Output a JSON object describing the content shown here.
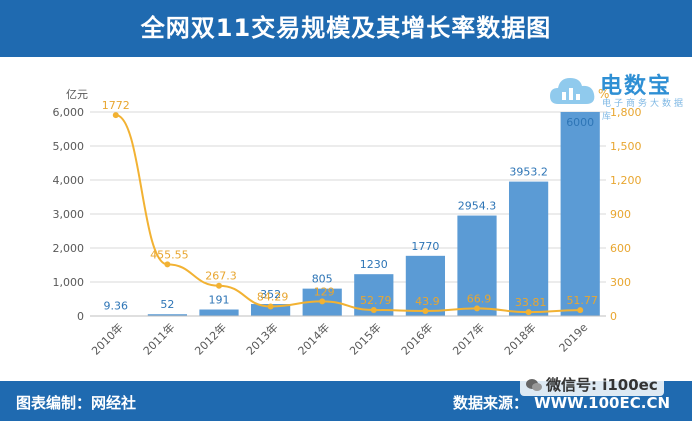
{
  "header": {
    "title": "全网双11交易规模及其增长率数据图"
  },
  "logo": {
    "name": "电数宝",
    "subtitle": "电子商务大数据库",
    "icon": "cloud-icon"
  },
  "footer": {
    "left": "图表编制：网经社",
    "right_label": "数据来源：",
    "right_url": "WWW.100EC.CN"
  },
  "watermark": {
    "text": "微信号: i100ec",
    "icon": "wechat-icon"
  },
  "colors": {
    "bar": "#5b9bd5",
    "line": "#f2b233",
    "header_bg": "#1f6ab0",
    "bar_label": "#2e75b6",
    "line_label": "#e8a630"
  },
  "chart_data": {
    "type": "bar",
    "categories": [
      "2010年",
      "2011年",
      "2012年",
      "2013年",
      "2014年",
      "2015年",
      "2016年",
      "2017年",
      "2018年",
      "2019e"
    ],
    "series": [
      {
        "values": [
          9.36,
          52,
          191,
          352,
          805,
          1230,
          1770,
          2954.3,
          3953.2,
          6000
        ],
        "axis": "left",
        "kind": "bar"
      },
      {
        "values": [
          1772,
          455.55,
          267.3,
          84.29,
          129,
          52.79,
          43.9,
          66.9,
          33.81,
          51.77
        ],
        "axis": "right",
        "kind": "line"
      }
    ],
    "bar_labels": [
      "9.36",
      "52",
      "191",
      "352",
      "805",
      "1230",
      "1770",
      "2954.3",
      "3953.2",
      "6000"
    ],
    "line_labels": [
      "1772",
      "455.55",
      "267.3",
      "84.29",
      "129",
      "52.79",
      "43.9",
      "66.9",
      "33.81",
      "51.77"
    ],
    "ylabel": "亿元",
    "y2label": "%",
    "ylim": [
      0,
      6000
    ],
    "y2lim": [
      0,
      1800
    ],
    "yticks": [
      "0",
      "1,000",
      "2,000",
      "3,000",
      "4,000",
      "5,000",
      "6,000"
    ],
    "y2ticks": [
      "0",
      "300",
      "600",
      "900",
      "1,200",
      "1,500",
      "1,800"
    ],
    "grid": true,
    "legend": "none"
  }
}
